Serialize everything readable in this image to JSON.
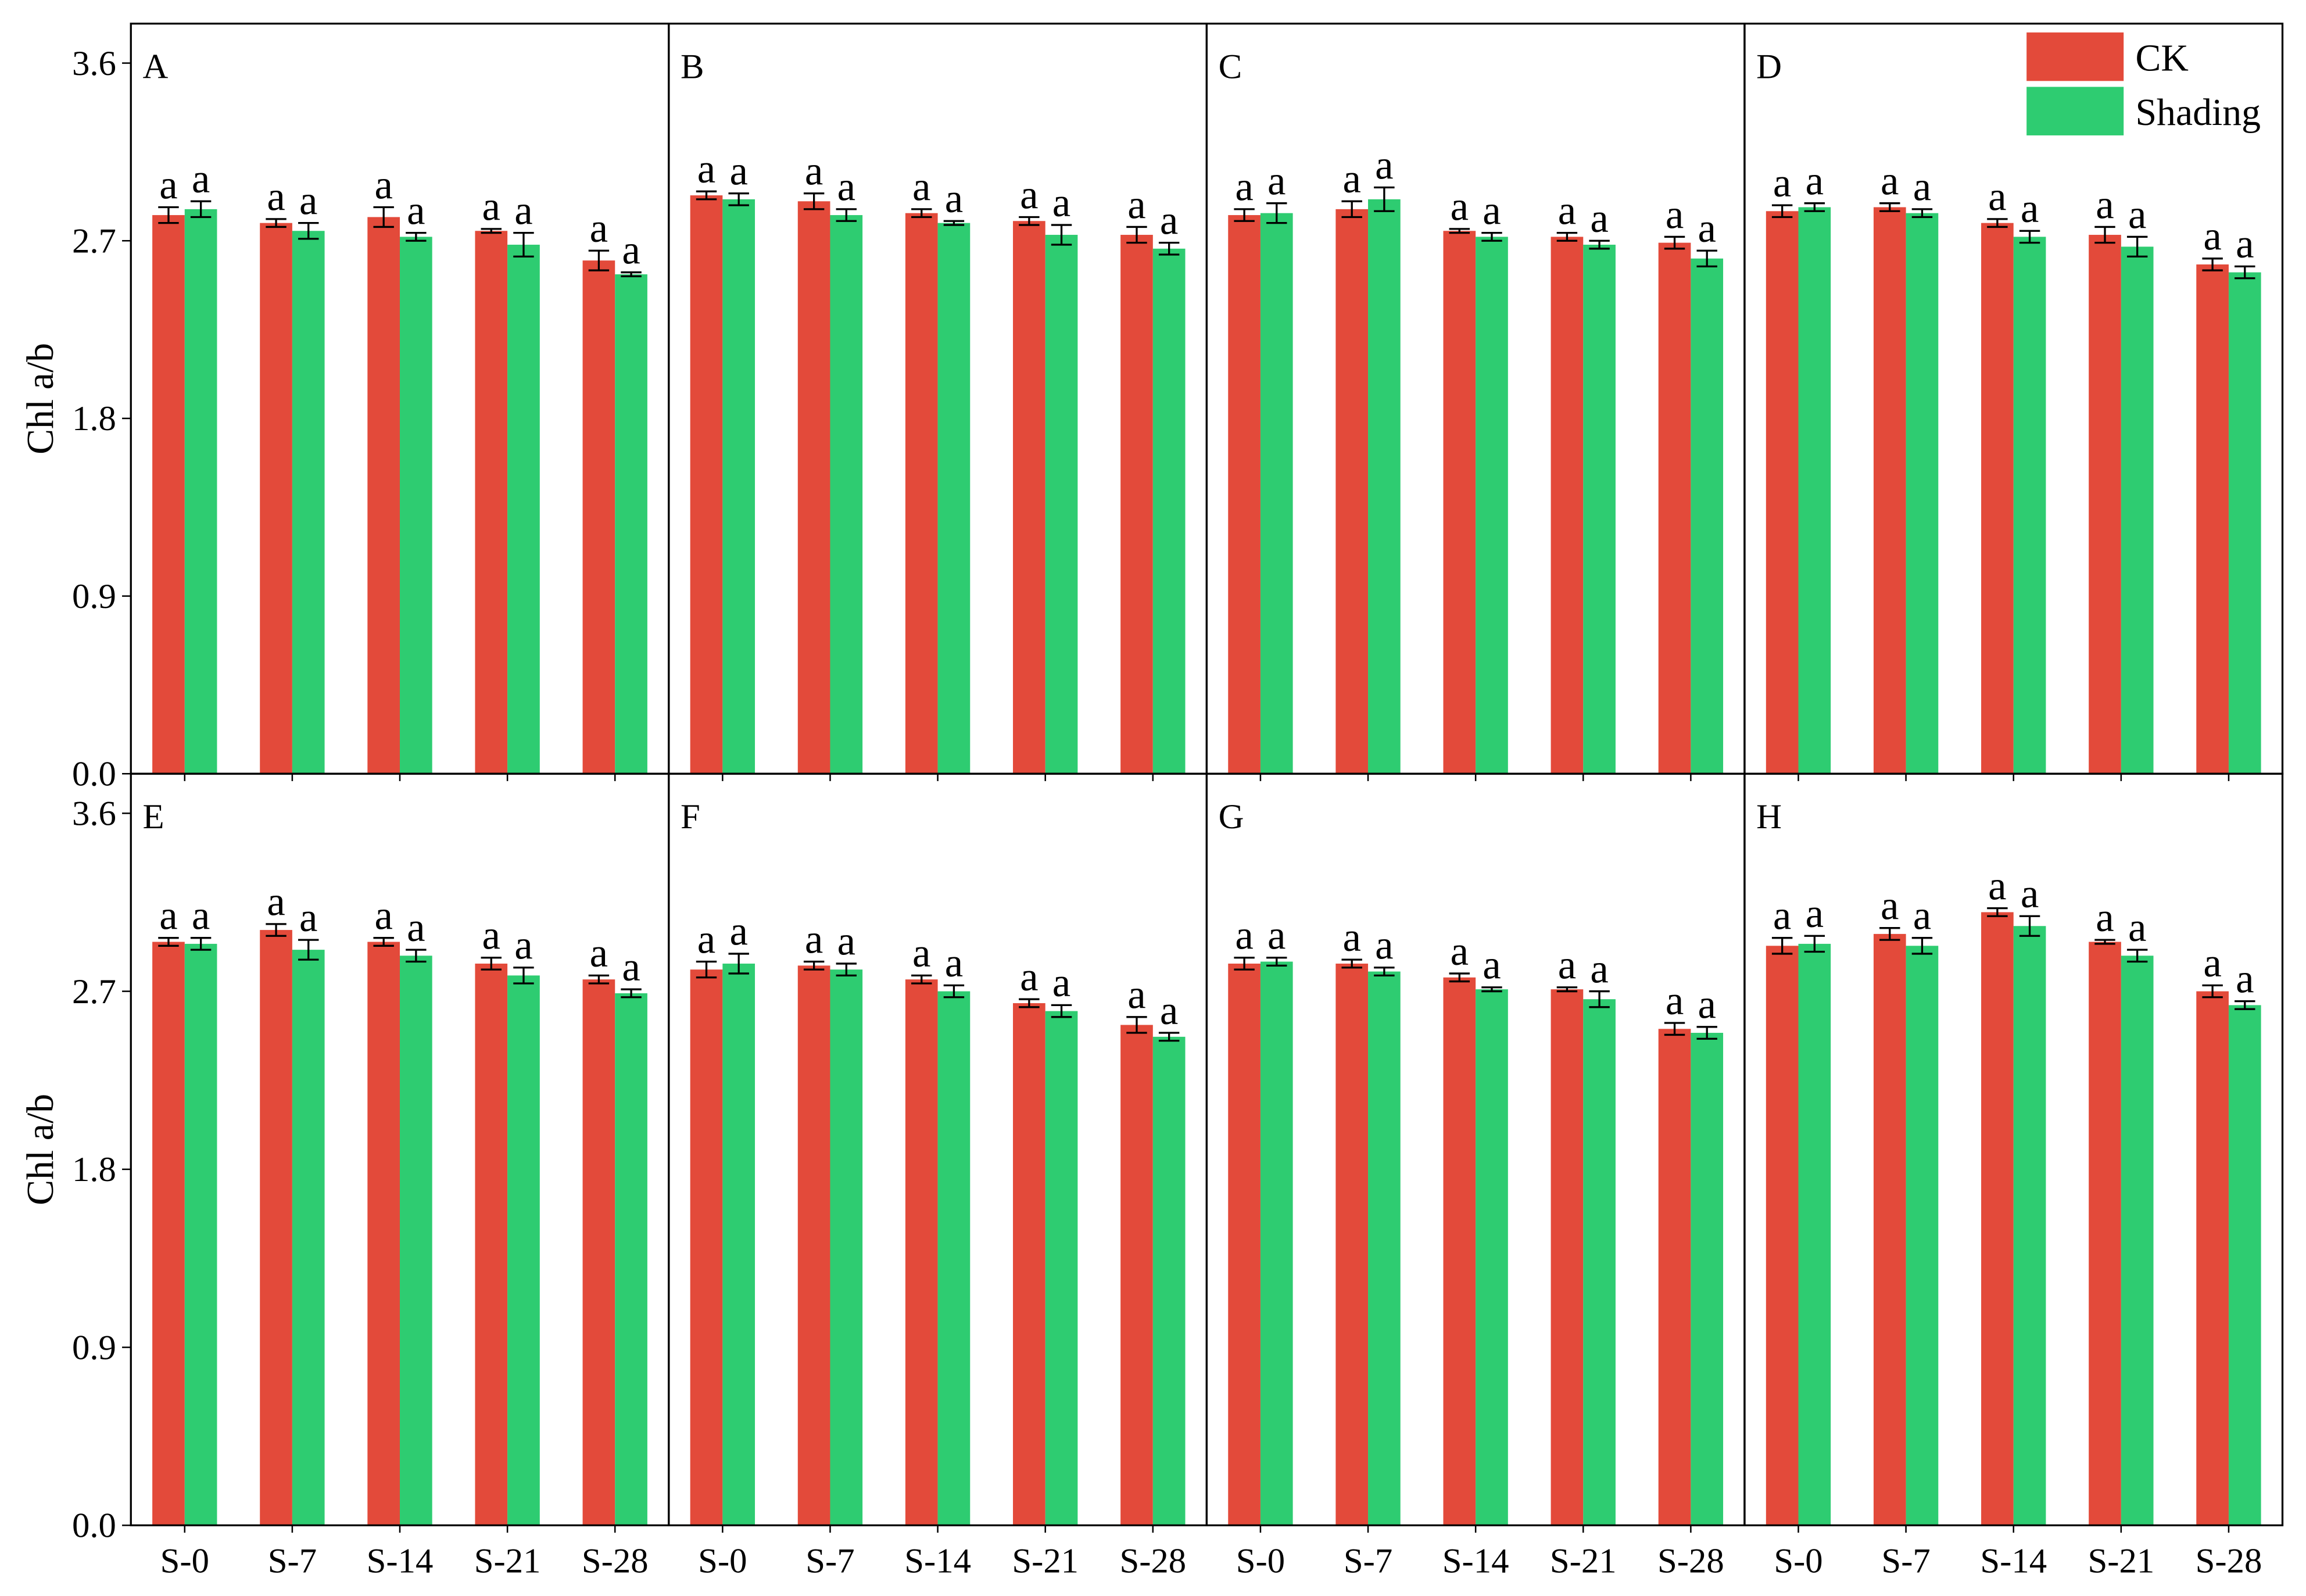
{
  "chart_data": [
    {
      "type": "bar",
      "panel": "A",
      "ylabel": "Chl a/b",
      "ylim": [
        0,
        3.8
      ],
      "yticks": [
        {
          "value": 0,
          "label": "0.0"
        },
        0.9,
        1.8,
        2.7,
        3.6
      ],
      "categories": [
        null,
        null,
        null,
        null,
        null
      ],
      "series": [
        {
          "color": "#e34a3a",
          "values": [
            2.83,
            2.79,
            2.82,
            2.75,
            2.6
          ],
          "errors": [
            0.04,
            0.02,
            0.05,
            0.01,
            0.05
          ],
          "letters": [
            "a",
            "a",
            "a",
            "a",
            "a"
          ]
        },
        {
          "color": "#2ecc71",
          "values": [
            2.86,
            2.75,
            2.72,
            2.68,
            2.53
          ],
          "errors": [
            0.04,
            0.04,
            0.02,
            0.06,
            0.01
          ],
          "letters": [
            "a",
            "a",
            "a",
            "a",
            "a"
          ]
        }
      ]
    },
    {
      "type": "bar",
      "panel": "B",
      "ylim": [
        0,
        3.8
      ],
      "categories": [
        null,
        null,
        null,
        null,
        null
      ],
      "series": [
        {
          "color": "#e34a3a",
          "values": [
            2.93,
            2.9,
            2.84,
            2.8,
            2.73
          ],
          "errors": [
            0.02,
            0.04,
            0.02,
            0.02,
            0.04
          ],
          "letters": [
            "a",
            "a",
            "a",
            "a",
            "a"
          ]
        },
        {
          "color": "#2ecc71",
          "values": [
            2.91,
            2.83,
            2.79,
            2.73,
            2.66
          ],
          "errors": [
            0.03,
            0.03,
            0.01,
            0.05,
            0.03
          ],
          "letters": [
            "a",
            "a",
            "a",
            "a",
            "a"
          ]
        }
      ]
    },
    {
      "type": "bar",
      "panel": "C",
      "ylim": [
        0,
        3.8
      ],
      "categories": [
        null,
        null,
        null,
        null,
        null
      ],
      "series": [
        {
          "color": "#e34a3a",
          "values": [
            2.83,
            2.86,
            2.75,
            2.72,
            2.69
          ],
          "errors": [
            0.03,
            0.04,
            0.01,
            0.02,
            0.03
          ],
          "letters": [
            "a",
            "a",
            "a",
            "a",
            "a"
          ]
        },
        {
          "color": "#2ecc71",
          "values": [
            2.84,
            2.91,
            2.72,
            2.68,
            2.61
          ],
          "errors": [
            0.05,
            0.06,
            0.02,
            0.02,
            0.04
          ],
          "letters": [
            "a",
            "a",
            "a",
            "a",
            "a"
          ]
        }
      ]
    },
    {
      "type": "bar",
      "panel": "D",
      "ylim": [
        0,
        3.8
      ],
      "categories": [
        null,
        null,
        null,
        null,
        null
      ],
      "series": [
        {
          "name": "CK",
          "color": "#e34a3a",
          "values": [
            2.85,
            2.87,
            2.79,
            2.73,
            2.58
          ],
          "errors": [
            0.03,
            0.02,
            0.02,
            0.04,
            0.03
          ],
          "letters": [
            "a",
            "a",
            "a",
            "a",
            "a"
          ]
        },
        {
          "name": "Shading",
          "color": "#2ecc71",
          "values": [
            2.87,
            2.84,
            2.72,
            2.67,
            2.54
          ],
          "errors": [
            0.02,
            0.02,
            0.03,
            0.05,
            0.03
          ],
          "letters": [
            "a",
            "a",
            "a",
            "a",
            "a"
          ]
        }
      ]
    },
    {
      "type": "bar",
      "panel": "E",
      "ylabel": "Chl a/b",
      "ylim": [
        0,
        3.8
      ],
      "yticks": [
        {
          "value": 0,
          "label": "0.0"
        },
        0.9,
        1.8,
        2.7,
        3.6
      ],
      "categories": [
        "S-0",
        "S-7",
        "S-14",
        "S-21",
        "S-28"
      ],
      "series": [
        {
          "color": "#e34a3a",
          "values": [
            2.95,
            3.01,
            2.95,
            2.84,
            2.76
          ],
          "errors": [
            0.02,
            0.03,
            0.02,
            0.03,
            0.02
          ],
          "letters": [
            "a",
            "a",
            "a",
            "a",
            "a"
          ]
        },
        {
          "color": "#2ecc71",
          "values": [
            2.94,
            2.91,
            2.88,
            2.78,
            2.69
          ],
          "errors": [
            0.03,
            0.05,
            0.03,
            0.04,
            0.02
          ],
          "letters": [
            "a",
            "a",
            "a",
            "a",
            "a"
          ]
        }
      ]
    },
    {
      "type": "bar",
      "panel": "F",
      "ylim": [
        0,
        3.8
      ],
      "categories": [
        "S-0",
        "S-7",
        "S-14",
        "S-21",
        "S-28"
      ],
      "series": [
        {
          "color": "#e34a3a",
          "values": [
            2.81,
            2.83,
            2.76,
            2.64,
            2.53
          ],
          "errors": [
            0.04,
            0.02,
            0.02,
            0.02,
            0.04
          ],
          "letters": [
            "a",
            "a",
            "a",
            "a",
            "a"
          ]
        },
        {
          "color": "#2ecc71",
          "values": [
            2.84,
            2.81,
            2.7,
            2.6,
            2.47
          ],
          "errors": [
            0.05,
            0.03,
            0.03,
            0.03,
            0.02
          ],
          "letters": [
            "a",
            "a",
            "a",
            "a",
            "a"
          ]
        }
      ]
    },
    {
      "type": "bar",
      "panel": "G",
      "ylim": [
        0,
        3.8
      ],
      "categories": [
        "S-0",
        "S-7",
        "S-14",
        "S-21",
        "S-28"
      ],
      "series": [
        {
          "color": "#e34a3a",
          "values": [
            2.84,
            2.84,
            2.77,
            2.71,
            2.51
          ],
          "errors": [
            0.03,
            0.02,
            0.02,
            0.01,
            0.03
          ],
          "letters": [
            "a",
            "a",
            "a",
            "a",
            "a"
          ]
        },
        {
          "color": "#2ecc71",
          "values": [
            2.85,
            2.8,
            2.71,
            2.66,
            2.49
          ],
          "errors": [
            0.02,
            0.02,
            0.01,
            0.04,
            0.03
          ],
          "letters": [
            "a",
            "a",
            "a",
            "a",
            "a"
          ]
        }
      ]
    },
    {
      "type": "bar",
      "panel": "H",
      "ylim": [
        0,
        3.8
      ],
      "categories": [
        "S-0",
        "S-7",
        "S-14",
        "S-21",
        "S-28"
      ],
      "series": [
        {
          "color": "#e34a3a",
          "values": [
            2.93,
            2.99,
            3.1,
            2.95,
            2.7
          ],
          "errors": [
            0.04,
            0.03,
            0.02,
            0.01,
            0.03
          ],
          "letters": [
            "a",
            "a",
            "a",
            "a",
            "a"
          ]
        },
        {
          "color": "#2ecc71",
          "values": [
            2.94,
            2.93,
            3.03,
            2.88,
            2.63
          ],
          "errors": [
            0.04,
            0.04,
            0.05,
            0.03,
            0.02
          ],
          "letters": [
            "a",
            "a",
            "a",
            "a",
            "a"
          ]
        }
      ]
    }
  ]
}
